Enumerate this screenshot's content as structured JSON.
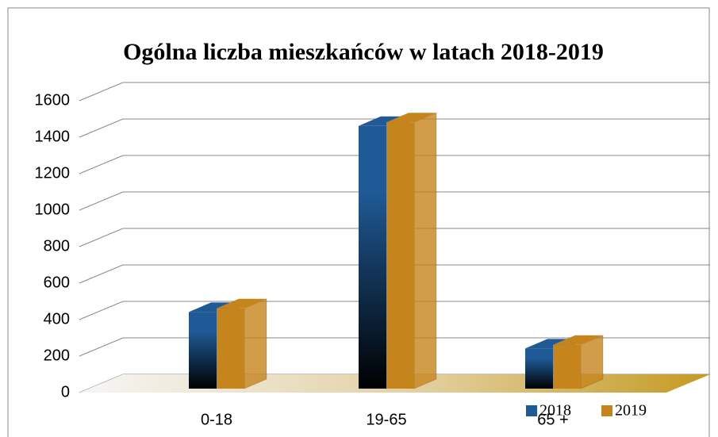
{
  "chart_data": {
    "type": "bar3d",
    "title": "Ogólna liczba mieszkańców w latach 2018-2019",
    "categories": [
      "0-18",
      "19-65",
      "65 +"
    ],
    "series": [
      {
        "name": "2018",
        "color": "#1f5a96",
        "values": [
          420,
          1440,
          220
        ]
      },
      {
        "name": "2019",
        "color": "#c5851c",
        "values": [
          440,
          1460,
          240
        ]
      }
    ],
    "ylim": [
      0,
      1600
    ],
    "yticks": [
      0,
      200,
      400,
      600,
      800,
      1000,
      1200,
      1400,
      1600
    ],
    "grid": true
  }
}
